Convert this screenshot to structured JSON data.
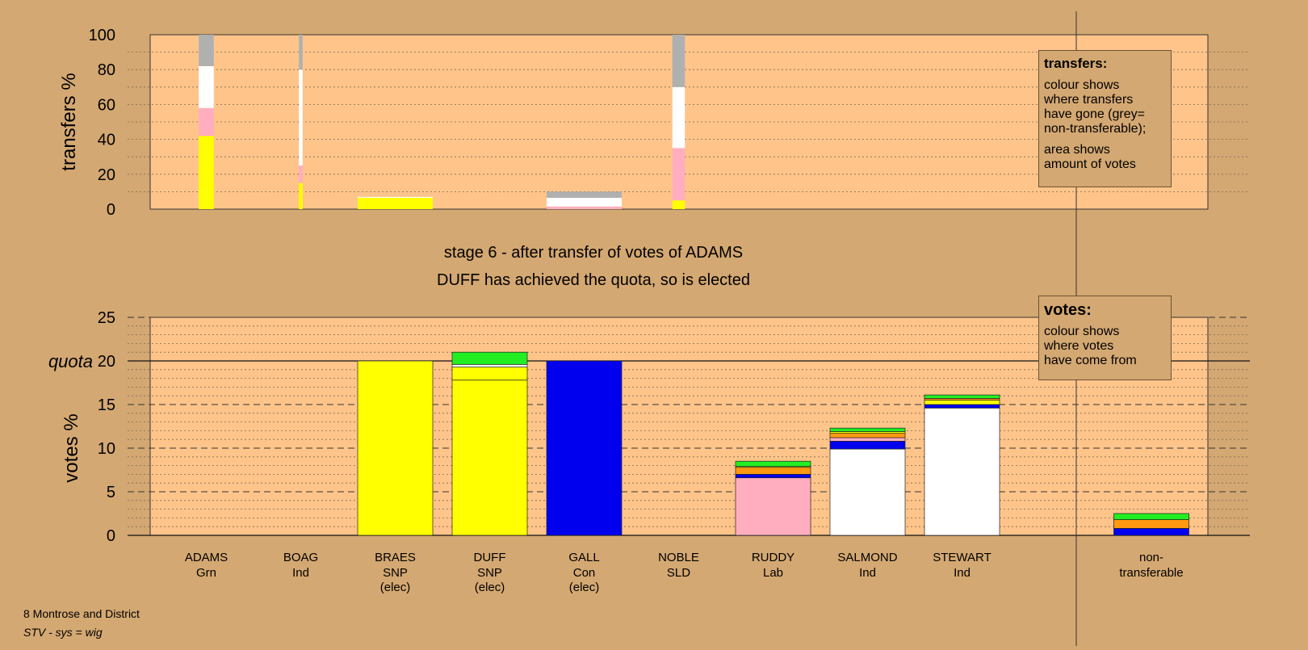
{
  "colors": {
    "background": "#d4a872",
    "plot_background": "#ffc48a",
    "side_band": "#d4a872",
    "grn": "#22ee22",
    "ind": "#ffffff",
    "snp": "#ffff00",
    "con": "#0000ee",
    "sld": "#ff9911",
    "lab": "#ffaec0",
    "nontransferable": "#b0b0b0"
  },
  "titles": {
    "line1": "stage 6 - after transfer of votes of ADAMS",
    "line2": "DUFF has achieved the quota, so is elected"
  },
  "legends": {
    "transfers": {
      "title": "transfers:",
      "text1": "colour shows\nwhere transfers\nhave gone (grey=\nnon-transferable);",
      "text2": "area shows\namount of votes"
    },
    "votes": {
      "title": "votes:",
      "text1": "colour shows\nwhere votes\nhave come from"
    }
  },
  "footer": {
    "area": "8 Montrose and District",
    "system": "STV - sys = wig"
  },
  "chart_data": [
    {
      "type": "bar",
      "subtype": "stacked-transfers",
      "ylabel": "transfers %",
      "ylim": [
        0,
        100
      ],
      "yticks": [
        "0",
        "20",
        "40",
        "60",
        "80",
        "100"
      ],
      "grid": true,
      "transfers": [
        {
          "candidate": "ADAMS",
          "amount": 0.6,
          "segments": [
            {
              "color": "#ffff00",
              "value": 42
            },
            {
              "color": "#ffaec0",
              "value": 16
            },
            {
              "color": "#ffffff",
              "value": 24
            },
            {
              "color": "#b0b0b0",
              "value": 18
            }
          ]
        },
        {
          "candidate": "BOAG",
          "amount": 0.15,
          "segments": [
            {
              "color": "#ffff00",
              "value": 15
            },
            {
              "color": "#ffaec0",
              "value": 10
            },
            {
              "color": "#ffffff",
              "value": 55
            },
            {
              "color": "#b0b0b0",
              "value": 20
            }
          ]
        },
        {
          "candidate": "BRAES",
          "amount": 3.0,
          "segments": [
            {
              "color": "#ffff00",
              "value": 6.5
            },
            {
              "color": "#ffffff",
              "value": 0.5
            }
          ]
        },
        {
          "candidate": "GALL",
          "amount": 3.0,
          "segments": [
            {
              "color": "#ffaec0",
              "value": 1.5
            },
            {
              "color": "#ffffff",
              "value": 5
            },
            {
              "color": "#b0b0b0",
              "value": 3.5
            }
          ]
        },
        {
          "candidate": "NOBLE",
          "amount": 0.5,
          "segments": [
            {
              "color": "#ffff00",
              "value": 5
            },
            {
              "color": "#ffaec0",
              "value": 30
            },
            {
              "color": "#ffffff",
              "value": 35
            },
            {
              "color": "#b0b0b0",
              "value": 30
            }
          ]
        }
      ]
    },
    {
      "type": "bar",
      "subtype": "stacked-votes",
      "ylabel": "votes %",
      "ylim": [
        0,
        25
      ],
      "yticks": [
        "0",
        "5",
        "10",
        "15",
        "20",
        "25"
      ],
      "quota": 20,
      "quota_label": "quota",
      "grid": true,
      "categories": [
        {
          "name": "ADAMS",
          "party": "Grn",
          "status": ""
        },
        {
          "name": "BOAG",
          "party": "Ind",
          "status": ""
        },
        {
          "name": "BRAES",
          "party": "SNP",
          "status": "(elec)"
        },
        {
          "name": "DUFF",
          "party": "SNP",
          "status": "(elec)"
        },
        {
          "name": "GALL",
          "party": "Con",
          "status": "(elec)"
        },
        {
          "name": "NOBLE",
          "party": "SLD",
          "status": ""
        },
        {
          "name": "RUDDY",
          "party": "Lab",
          "status": ""
        },
        {
          "name": "SALMOND",
          "party": "Ind",
          "status": ""
        },
        {
          "name": "STEWART",
          "party": "Ind",
          "status": ""
        },
        {
          "name": "non-",
          "party": "transferable",
          "status": ""
        }
      ],
      "votes": [
        [],
        [],
        [
          {
            "color": "#ffff00",
            "value": 20
          }
        ],
        [
          {
            "color": "#ffff00",
            "value": 17.8
          },
          {
            "color": "#ffff00",
            "value": 1.5
          },
          {
            "color": "#ffffff",
            "value": 0.3
          },
          {
            "color": "#22ee22",
            "value": 1.4
          }
        ],
        [
          {
            "color": "#0000ee",
            "value": 20
          }
        ],
        [],
        [
          {
            "color": "#ffaec0",
            "value": 6.6
          },
          {
            "color": "#0000ee",
            "value": 0.4
          },
          {
            "color": "#ff9911",
            "value": 0.8
          },
          {
            "color": "#ffff00",
            "value": 0.1
          },
          {
            "color": "#22ee22",
            "value": 0.6
          }
        ],
        [
          {
            "color": "#ffffff",
            "value": 9.9
          },
          {
            "color": "#0000ee",
            "value": 0.9
          },
          {
            "color": "#ffaec0",
            "value": 0.4
          },
          {
            "color": "#ff9911",
            "value": 0.5
          },
          {
            "color": "#ffff00",
            "value": 0.2
          },
          {
            "color": "#22ee22",
            "value": 0.4
          }
        ],
        [
          {
            "color": "#ffffff",
            "value": 14.6
          },
          {
            "color": "#0000ee",
            "value": 0.4
          },
          {
            "color": "#ffff00",
            "value": 0.5
          },
          {
            "color": "#ff9911",
            "value": 0.2
          },
          {
            "color": "#22ee22",
            "value": 0.4
          }
        ],
        [
          {
            "color": "#0000ee",
            "value": 0.8
          },
          {
            "color": "#ff9911",
            "value": 1.0
          },
          {
            "color": "#22ee22",
            "value": 0.7
          }
        ]
      ]
    }
  ]
}
